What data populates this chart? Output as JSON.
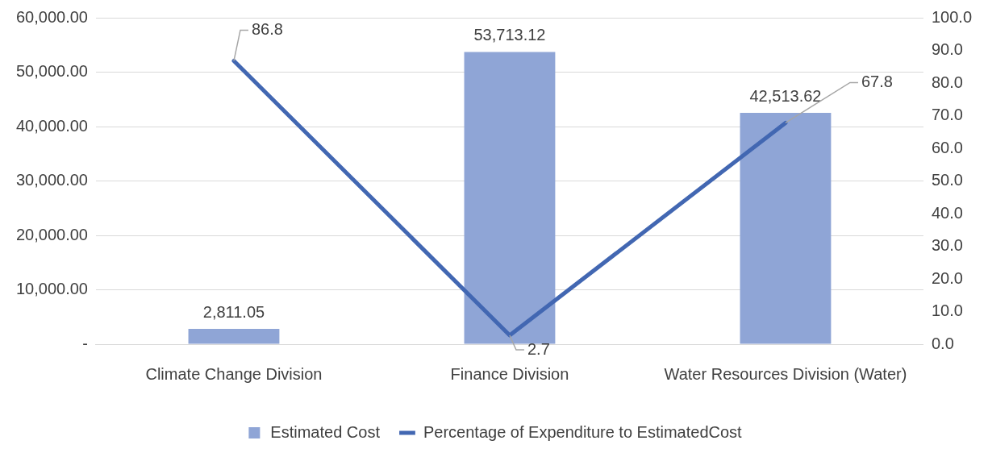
{
  "chart_data": {
    "type": "bar",
    "categories": [
      "Climate Change Division",
      "Finance Division",
      "Water Resources Division (Water)"
    ],
    "series": [
      {
        "name": "Estimated Cost",
        "color": "#8fa5d6",
        "values": [
          2811.05,
          53713.12,
          42513.62
        ],
        "value_labels": [
          "2,811.05",
          "53,713.12",
          "42,513.62"
        ]
      },
      {
        "name": "Percentage of Expenditure to EstimatedCost",
        "type": "line",
        "axis": "y2",
        "color": "#4267b2",
        "values": [
          86.8,
          2.7,
          67.8
        ],
        "value_labels": [
          "86.8",
          "2.7",
          "67.8"
        ]
      }
    ],
    "ylim": [
      0,
      60000
    ],
    "yticks": [
      {
        "value": 0,
        "label": "-"
      },
      {
        "value": 10000,
        "label": "10,000.00"
      },
      {
        "value": 20000,
        "label": "20,000.00"
      },
      {
        "value": 30000,
        "label": "30,000.00"
      },
      {
        "value": 40000,
        "label": "40,000.00"
      },
      {
        "value": 50000,
        "label": "50,000.00"
      },
      {
        "value": 60000,
        "label": "60,000.00"
      }
    ],
    "y2lim": [
      0,
      100
    ],
    "y2ticks": [
      {
        "value": 0,
        "label": "0.0"
      },
      {
        "value": 10,
        "label": "10.0"
      },
      {
        "value": 20,
        "label": "20.0"
      },
      {
        "value": 30,
        "label": "30.0"
      },
      {
        "value": 40,
        "label": "40.0"
      },
      {
        "value": 50,
        "label": "50.0"
      },
      {
        "value": 60,
        "label": "60.0"
      },
      {
        "value": 70,
        "label": "70.0"
      },
      {
        "value": 80,
        "label": "80.0"
      },
      {
        "value": 90,
        "label": "90.0"
      },
      {
        "value": 100,
        "label": "100.0"
      }
    ],
    "grid": "y",
    "legend": "bottom"
  }
}
